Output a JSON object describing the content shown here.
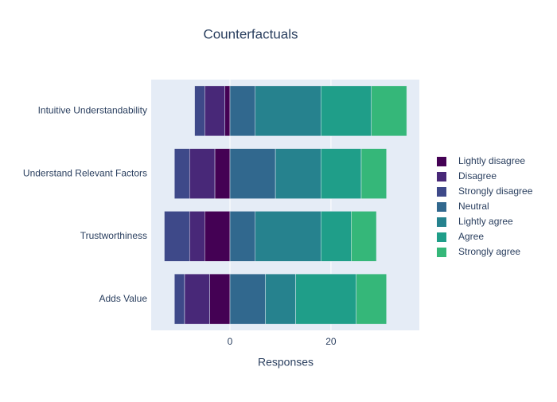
{
  "chart_data": {
    "type": "diverging-stacked-bar",
    "title": "Counterfactuals",
    "xlabel": "Responses",
    "categories": [
      "Intuitive Understandability",
      "Understand Relevant Factors",
      "Trustworthiness",
      "Adds Value"
    ],
    "series": [
      {
        "name": "Lightly disagree",
        "color": "#440154",
        "values": [
          -1,
          -3,
          -5,
          -4
        ]
      },
      {
        "name": "Disagree",
        "color": "#482878",
        "values": [
          -4,
          -5,
          -3,
          -5
        ]
      },
      {
        "name": "Strongly disagree",
        "color": "#3e4989",
        "values": [
          -2,
          -3,
          -5,
          -2
        ]
      },
      {
        "name": "Neutral",
        "color": "#31688e",
        "values": [
          5,
          9,
          5,
          7
        ]
      },
      {
        "name": "Lightly agree",
        "color": "#26828e",
        "values": [
          13,
          9,
          13,
          6
        ]
      },
      {
        "name": "Agree",
        "color": "#1f9e89",
        "values": [
          10,
          8,
          6,
          12
        ]
      },
      {
        "name": "Strongly agree",
        "color": "#35b779",
        "values": [
          7,
          5,
          5,
          6
        ]
      }
    ],
    "xlim": [
      -15.6,
      37.5
    ],
    "xticks": [
      0,
      20
    ],
    "grid": true
  }
}
